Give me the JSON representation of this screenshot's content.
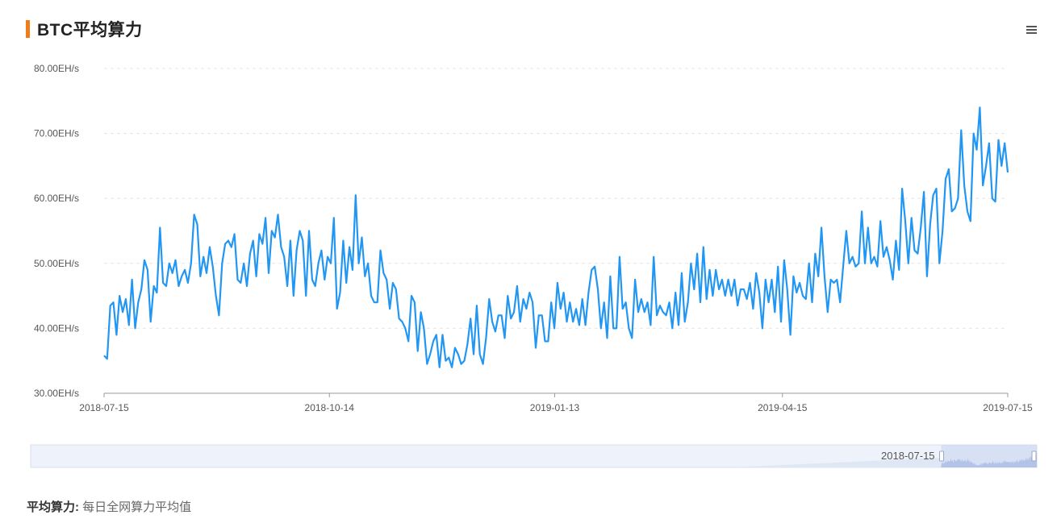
{
  "header": {
    "title": "BTC平均算力",
    "accent_color": "#f07d18",
    "menu_icon": "hamburger-icon"
  },
  "chart_data": {
    "type": "line",
    "title": "BTC平均算力",
    "unit": "EH/s",
    "color": "#2196f3",
    "grid": true,
    "ylim": [
      30,
      80
    ],
    "y_ticks": [
      "30.00EH/s",
      "40.00EH/s",
      "50.00EH/s",
      "60.00EH/s",
      "70.00EH/s",
      "80.00EH/s"
    ],
    "x_ticks": [
      "2018-07-15",
      "2018-10-14",
      "2019-01-13",
      "2019-04-15",
      "2019-07-15"
    ],
    "x_range": [
      "2018-07-15",
      "2019-07-15"
    ],
    "series": [
      {
        "values": [
          35.8,
          35.3,
          43.5,
          44.0,
          39.0,
          45.0,
          42.5,
          44.5,
          40.5,
          47.5,
          40.0,
          44.0,
          46.0,
          50.5,
          49.0,
          41.0,
          46.5,
          45.5,
          55.5,
          47.0,
          46.5,
          50.0,
          48.5,
          50.5,
          46.5,
          48.0,
          49.0,
          47.0,
          50.0,
          57.5,
          56.0,
          48.0,
          51.0,
          48.5,
          52.5,
          49.5,
          45.0,
          42.0,
          50.0,
          53.0,
          53.5,
          52.5,
          54.5,
          47.5,
          47.0,
          50.0,
          46.5,
          51.5,
          53.5,
          48.0,
          54.5,
          53.0,
          57.0,
          48.5,
          55.0,
          54.0,
          57.5,
          52.5,
          51.0,
          46.5,
          53.5,
          45.0,
          52.0,
          55.0,
          53.5,
          45.0,
          55.0,
          47.5,
          46.5,
          50.0,
          52.0,
          47.5,
          51.0,
          50.0,
          57.0,
          43.0,
          45.5,
          53.5,
          47.0,
          52.5,
          49.0,
          60.5,
          50.0,
          54.0,
          48.0,
          50.0,
          45.0,
          44.0,
          44.0,
          52.0,
          48.5,
          47.5,
          43.0,
          47.0,
          46.0,
          41.5,
          41.0,
          40.0,
          38.0,
          45.0,
          44.0,
          36.5,
          42.5,
          40.0,
          34.5,
          36.0,
          38.0,
          39.0,
          34.0,
          39.0,
          35.0,
          35.5,
          34.0,
          37.0,
          36.0,
          34.5,
          35.0,
          37.5,
          41.5,
          36.0,
          43.5,
          36.0,
          34.5,
          38.5,
          44.5,
          41.0,
          39.5,
          42.0,
          42.0,
          38.5,
          45.0,
          41.5,
          42.5,
          46.5,
          41.0,
          44.5,
          43.0,
          45.5,
          44.0,
          37.0,
          42.0,
          42.0,
          38.0,
          38.0,
          44.0,
          40.0,
          47.0,
          43.0,
          45.5,
          41.0,
          44.0,
          41.0,
          43.0,
          40.5,
          44.5,
          40.5,
          45.5,
          49.0,
          49.5,
          46.0,
          40.0,
          44.0,
          38.5,
          48.0,
          40.0,
          40.0,
          51.0,
          43.0,
          44.0,
          40.0,
          38.5,
          47.5,
          42.5,
          44.5,
          42.5,
          44.0,
          40.5,
          51.0,
          42.0,
          43.5,
          42.5,
          42.0,
          44.0,
          40.0,
          45.5,
          40.5,
          48.5,
          41.0,
          44.0,
          50.0,
          46.0,
          51.5,
          44.0,
          52.5,
          44.5,
          49.0,
          45.0,
          49.0,
          46.0,
          47.5,
          45.0,
          47.5,
          45.0,
          47.5,
          43.5,
          46.0,
          46.0,
          44.5,
          47.0,
          43.0,
          48.5,
          45.5,
          40.0,
          47.5,
          44.0,
          47.5,
          42.5,
          49.5,
          41.0,
          50.5,
          46.0,
          39.0,
          48.0,
          45.5,
          47.0,
          45.0,
          44.5,
          50.0,
          44.0,
          51.5,
          48.0,
          55.5,
          48.0,
          42.5,
          47.5,
          47.0,
          47.5,
          44.0,
          49.5,
          55.0,
          50.0,
          51.0,
          49.5,
          50.0,
          58.0,
          50.0,
          55.5,
          50.0,
          51.0,
          49.5,
          56.5,
          51.0,
          52.5,
          50.5,
          47.5,
          53.5,
          49.0,
          61.5,
          56.5,
          50.0,
          57.0,
          52.0,
          51.5,
          55.5,
          61.0,
          48.0,
          56.0,
          60.5,
          61.5,
          50.0,
          55.0,
          63.0,
          64.5,
          58.0,
          58.5,
          60.0,
          70.5,
          62.0,
          58.0,
          56.5,
          70.0,
          67.5,
          74.0,
          62.0,
          65.0,
          68.5,
          60.0,
          59.5,
          69.0,
          65.0,
          68.5,
          64.0
        ]
      }
    ]
  },
  "zoom": {
    "label": "2018-07-15",
    "start_fraction": 0.905,
    "end_fraction": 1.0
  },
  "note": {
    "label": "平均算力:",
    "text": "每日全网算力平均值"
  }
}
